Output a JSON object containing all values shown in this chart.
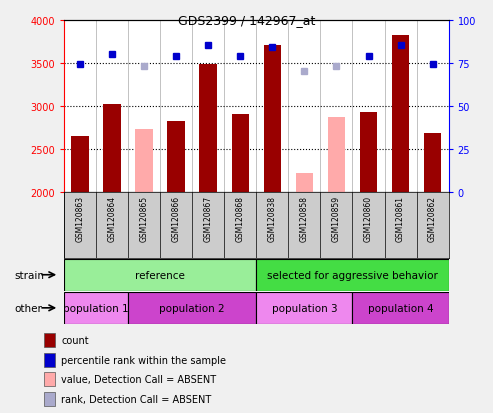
{
  "title": "GDS2399 / 142967_at",
  "samples": [
    "GSM120863",
    "GSM120864",
    "GSM120865",
    "GSM120866",
    "GSM120867",
    "GSM120868",
    "GSM120838",
    "GSM120858",
    "GSM120859",
    "GSM120860",
    "GSM120861",
    "GSM120862"
  ],
  "count_values": [
    2650,
    3020,
    null,
    2820,
    3490,
    2900,
    3700,
    null,
    null,
    2930,
    3820,
    2680
  ],
  "count_absent": [
    null,
    null,
    2730,
    null,
    null,
    null,
    null,
    2220,
    2870,
    null,
    null,
    null
  ],
  "rank_values": [
    74,
    80,
    null,
    79,
    85,
    79,
    84,
    null,
    null,
    79,
    85,
    74
  ],
  "rank_absent": [
    null,
    null,
    73,
    null,
    null,
    null,
    null,
    70,
    73,
    null,
    null,
    null
  ],
  "ylim_left": [
    2000,
    4000
  ],
  "ylim_right": [
    0,
    100
  ],
  "yticks_left": [
    2000,
    2500,
    3000,
    3500,
    4000
  ],
  "yticks_right": [
    0,
    25,
    50,
    75,
    100
  ],
  "count_color": "#990000",
  "count_absent_color": "#ffaaaa",
  "rank_color": "#0000cc",
  "rank_absent_color": "#aaaacc",
  "strain_groups": [
    {
      "label": "reference",
      "start": 0,
      "end": 6,
      "color": "#99ee99"
    },
    {
      "label": "selected for aggressive behavior",
      "start": 6,
      "end": 12,
      "color": "#44dd44"
    }
  ],
  "other_groups": [
    {
      "label": "population 1",
      "start": 0,
      "end": 2,
      "color": "#ee88ee"
    },
    {
      "label": "population 2",
      "start": 2,
      "end": 6,
      "color": "#cc44cc"
    },
    {
      "label": "population 3",
      "start": 6,
      "end": 9,
      "color": "#ee88ee"
    },
    {
      "label": "population 4",
      "start": 9,
      "end": 12,
      "color": "#cc44cc"
    }
  ],
  "legend_items": [
    {
      "label": "count",
      "color": "#990000"
    },
    {
      "label": "percentile rank within the sample",
      "color": "#0000cc"
    },
    {
      "label": "value, Detection Call = ABSENT",
      "color": "#ffaaaa"
    },
    {
      "label": "rank, Detection Call = ABSENT",
      "color": "#aaaacc"
    }
  ],
  "fig_bg": "#f0f0f0",
  "plot_bg": "#ffffff",
  "xtick_bg": "#cccccc",
  "grid_color": "black",
  "sep_color": "#aaaaaa"
}
